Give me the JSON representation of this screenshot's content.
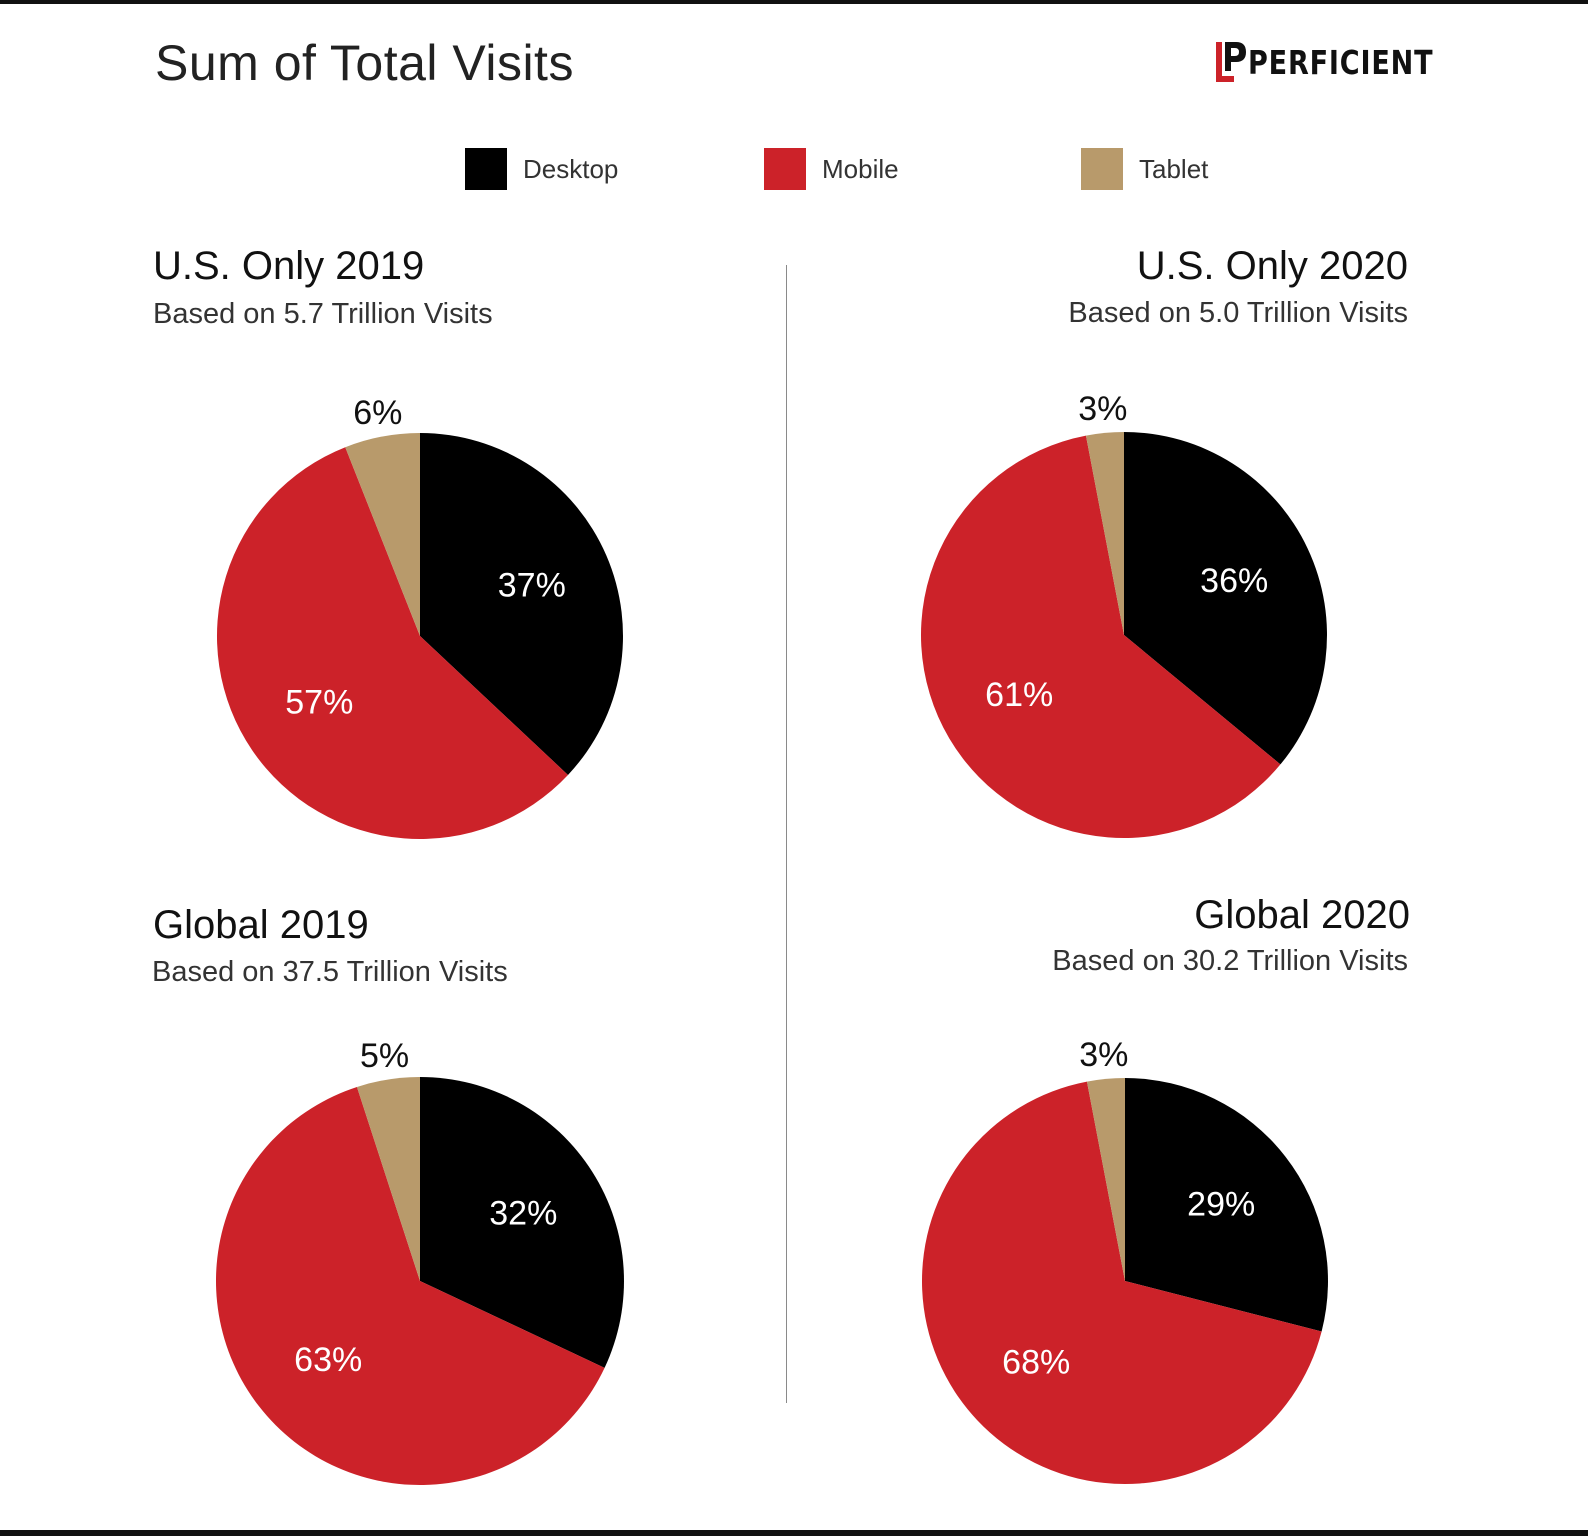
{
  "header": {
    "title": "Sum of Total Visits",
    "logo_text": "PERFICIENT"
  },
  "legend": {
    "items": [
      {
        "label": "Desktop",
        "color": "#000000"
      },
      {
        "label": "Mobile",
        "color": "#cc2229"
      },
      {
        "label": "Tablet",
        "color": "#b89a6b"
      }
    ]
  },
  "chart_data": [
    {
      "type": "pie",
      "title": "U.S. Only 2019",
      "subtitle": "Based on 5.7 Trillion Visits",
      "categories": [
        "Desktop",
        "Mobile",
        "Tablet"
      ],
      "values": [
        37,
        57,
        6
      ],
      "labels": [
        "37%",
        "57%",
        "6%"
      ]
    },
    {
      "type": "pie",
      "title": "U.S. Only 2020",
      "subtitle": "Based on 5.0 Trillion Visits",
      "categories": [
        "Desktop",
        "Mobile",
        "Tablet"
      ],
      "values": [
        36,
        61,
        3
      ],
      "labels": [
        "36%",
        "61%",
        "3%"
      ]
    },
    {
      "type": "pie",
      "title": "Global 2019",
      "subtitle": "Based on 37.5 Trillion Visits",
      "categories": [
        "Desktop",
        "Mobile",
        "Tablet"
      ],
      "values": [
        32,
        63,
        5
      ],
      "labels": [
        "32%",
        "63%",
        "5%"
      ]
    },
    {
      "type": "pie",
      "title": "Global 2020",
      "subtitle": "Based on 30.2 Trillion Visits",
      "categories": [
        "Desktop",
        "Mobile",
        "Tablet"
      ],
      "values": [
        29,
        68,
        3
      ],
      "labels": [
        "29%",
        "68%",
        "3%"
      ]
    }
  ]
}
